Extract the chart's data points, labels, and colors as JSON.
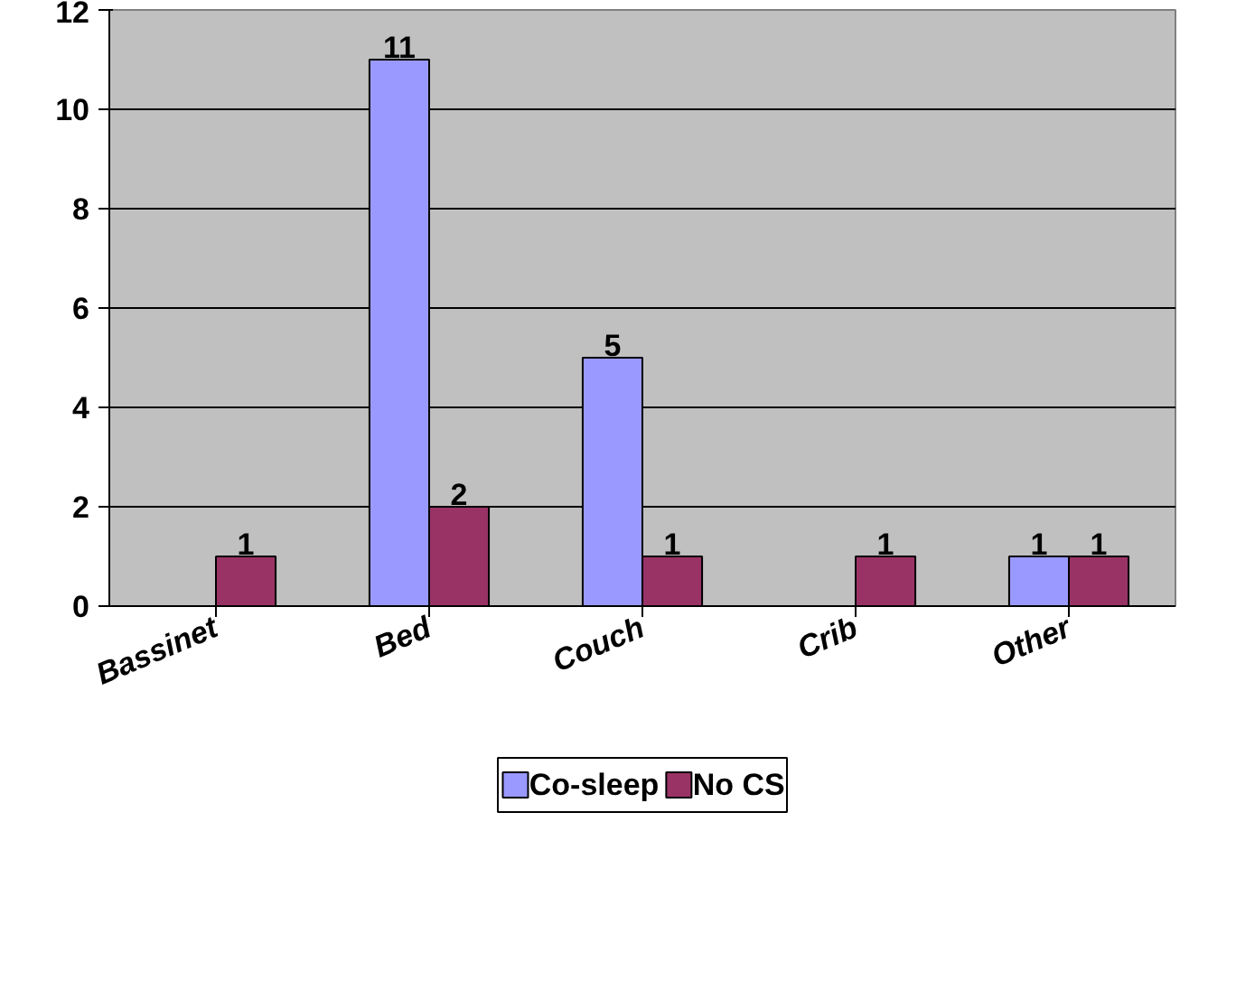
{
  "chart_data": {
    "type": "bar",
    "categories": [
      "Bassinet",
      "Bed",
      "Couch",
      "Crib",
      "Other"
    ],
    "series": [
      {
        "name": "Co-sleep",
        "color": "#9999ff",
        "values": [
          null,
          11,
          5,
          null,
          1
        ]
      },
      {
        "name": "No CS",
        "color": "#993366",
        "values": [
          1,
          2,
          1,
          1,
          1
        ]
      }
    ],
    "ylim": [
      0,
      12
    ],
    "yticks": [
      0,
      2,
      4,
      6,
      8,
      10,
      12
    ],
    "grid": "y",
    "legend": "bottom",
    "data_labels": true
  }
}
